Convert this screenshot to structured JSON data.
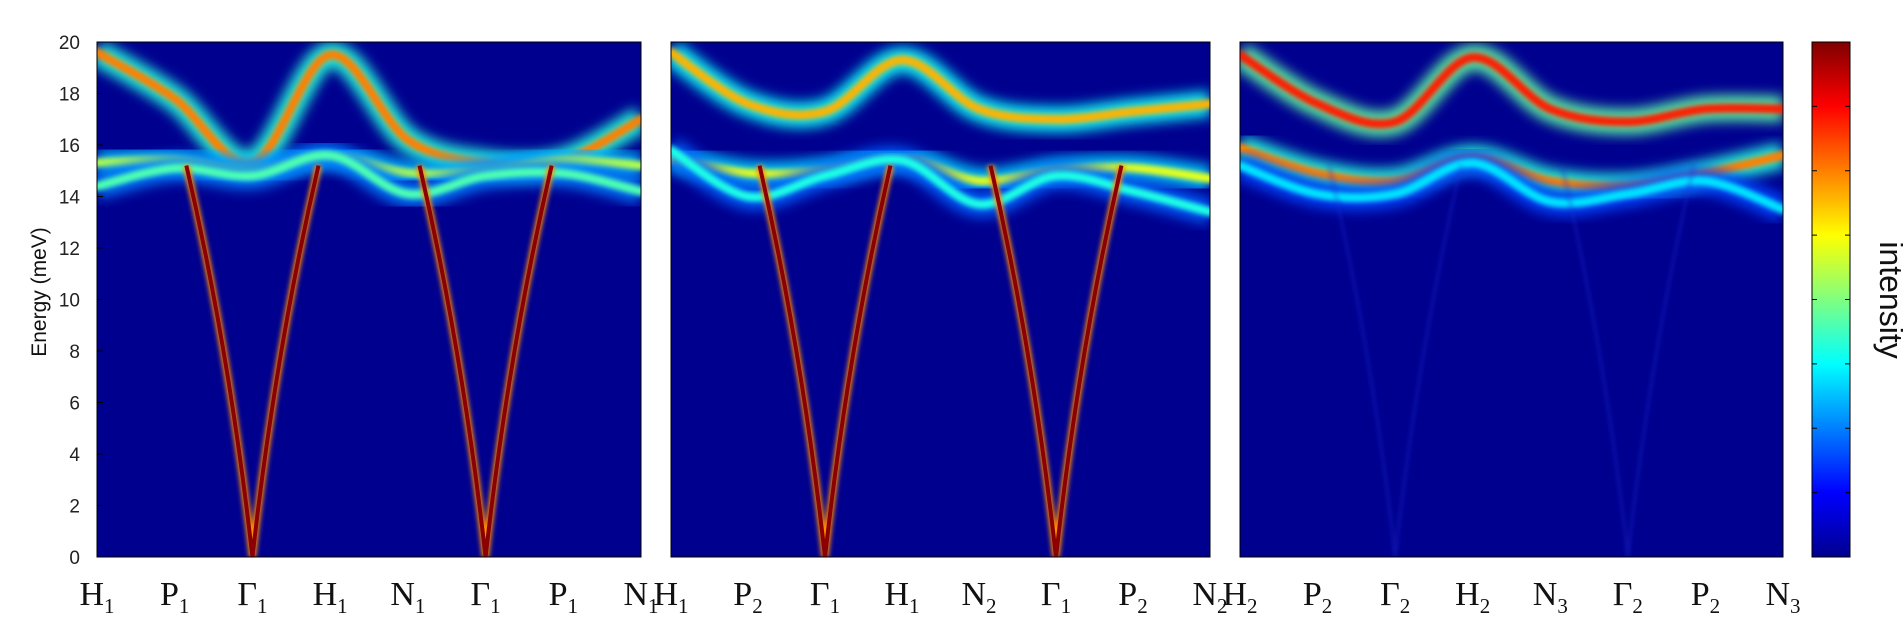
{
  "chart_data": {
    "type": "heatmap",
    "ylabel": "Energy (meV)",
    "ylim": [
      0,
      20
    ],
    "yticks": [
      0,
      2,
      4,
      6,
      8,
      10,
      12,
      14,
      16,
      18,
      20
    ],
    "colorbar": {
      "label": "intensity",
      "colormap": "jet",
      "ticks": 8
    },
    "colors": {
      "background": "#00008F",
      "max": "#800000"
    },
    "panels": [
      {
        "kpoints": [
          [
            "H",
            "1"
          ],
          [
            "P",
            "1"
          ],
          [
            "Γ",
            "1"
          ],
          [
            "H",
            "1"
          ],
          [
            "N",
            "1"
          ],
          [
            "Γ",
            "1"
          ],
          [
            "P",
            "1"
          ],
          [
            "N",
            "1"
          ]
        ],
        "acoustic_gamma_points": [
          2,
          5
        ],
        "acoustic_intensity": "strong",
        "bands": [
          {
            "name": "upper",
            "energies": [
              19.6,
              17.8,
              15.3,
              19.5,
              16.2,
              15.3,
              15.4,
              17.0
            ],
            "intensity": 0.75
          },
          {
            "name": "flat",
            "energies": [
              15.3,
              15.4,
              15.0,
              15.6,
              14.9,
              15.0,
              15.4,
              15.2
            ],
            "intensity": 0.55
          },
          {
            "name": "lower",
            "energies": [
              14.4,
              15.1,
              14.8,
              15.6,
              14.1,
              14.8,
              14.9,
              14.2
            ],
            "intensity": 0.45
          }
        ]
      },
      {
        "kpoints": [
          [
            "H",
            "1"
          ],
          [
            "P",
            "2"
          ],
          [
            "Γ",
            "1"
          ],
          [
            "H",
            "1"
          ],
          [
            "N",
            "2"
          ],
          [
            "Γ",
            "1"
          ],
          [
            "P",
            "2"
          ],
          [
            "N",
            "2"
          ]
        ],
        "acoustic_gamma_points": [
          2,
          5
        ],
        "acoustic_intensity": "strong",
        "bands": [
          {
            "name": "upper",
            "energies": [
              19.6,
              17.6,
              17.3,
              19.3,
              17.4,
              17.0,
              17.3,
              17.6
            ],
            "intensity": 0.7
          },
          {
            "name": "flat",
            "energies": [
              15.5,
              14.9,
              15.0,
              15.5,
              14.6,
              15.0,
              15.1,
              14.7
            ],
            "intensity": 0.6
          },
          {
            "name": "lower",
            "energies": [
              15.8,
              14.0,
              14.8,
              15.4,
              13.7,
              14.8,
              14.2,
              13.4
            ],
            "intensity": 0.4
          }
        ]
      },
      {
        "kpoints": [
          [
            "H",
            "2"
          ],
          [
            "P",
            "2"
          ],
          [
            "Γ",
            "2"
          ],
          [
            "H",
            "2"
          ],
          [
            "N",
            "3"
          ],
          [
            "Γ",
            "2"
          ],
          [
            "P",
            "2"
          ],
          [
            "N",
            "3"
          ]
        ],
        "acoustic_gamma_points": [
          2,
          5
        ],
        "acoustic_intensity": "faint",
        "bands": [
          {
            "name": "upper",
            "energies": [
              19.5,
              17.6,
              16.9,
              19.4,
              17.4,
              16.9,
              17.4,
              17.4
            ],
            "intensity": 0.85
          },
          {
            "name": "flat",
            "energies": [
              15.9,
              14.9,
              14.6,
              15.5,
              14.6,
              14.4,
              14.9,
              15.6
            ],
            "intensity": 0.75
          },
          {
            "name": "lower",
            "energies": [
              15.2,
              14.1,
              14.1,
              15.3,
              13.8,
              14.1,
              14.6,
              13.5
            ],
            "intensity": 0.35
          }
        ]
      }
    ]
  }
}
